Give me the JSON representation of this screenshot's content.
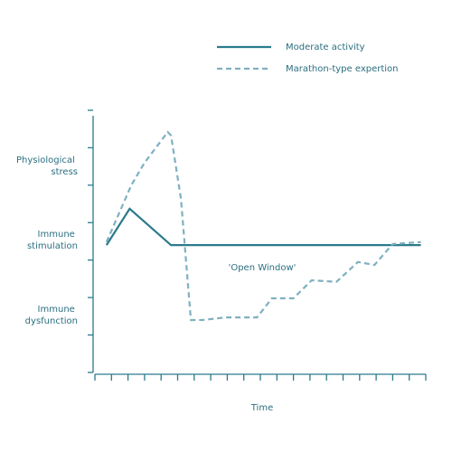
{
  "chart_data": {
    "type": "line",
    "xlabel": "Time",
    "y_labels": [
      "Physiological stress",
      "Immune stimulation",
      "Immune dysfunction"
    ],
    "annotation": "'Open Window'",
    "xlim": [
      0,
      20
    ],
    "xticks": [
      0,
      1,
      2,
      3,
      4,
      5,
      6,
      7,
      8,
      9,
      10,
      11,
      12,
      13,
      14,
      15,
      16,
      17,
      18,
      19,
      20
    ],
    "ylim": [
      0,
      7
    ],
    "yticks": [
      0,
      1,
      2,
      3,
      4,
      5,
      6,
      7
    ],
    "legend": "top-right",
    "series": [
      {
        "name": "Moderate activity",
        "color": "#2b7a8c",
        "dashed": false,
        "x": [
          0.7,
          2.1,
          4.6,
          19.7
        ],
        "values": [
          3.4,
          4.37,
          3.4,
          3.4
        ]
      },
      {
        "name": "Marathon-type expertion",
        "color": "#7fb0c0",
        "dashed": true,
        "x": [
          0.7,
          2.2,
          3.0,
          4.4,
          4.6,
          5.2,
          5.8,
          6.5,
          7.9,
          9.8,
          10.7,
          12.0,
          13.1,
          14.6,
          15.9,
          16.9,
          18.0,
          19.7
        ],
        "values": [
          3.48,
          5.0,
          5.6,
          6.42,
          6.33,
          4.64,
          1.4,
          1.4,
          1.47,
          1.47,
          1.98,
          1.98,
          2.46,
          2.42,
          2.95,
          2.87,
          3.43,
          3.48
        ]
      }
    ]
  }
}
